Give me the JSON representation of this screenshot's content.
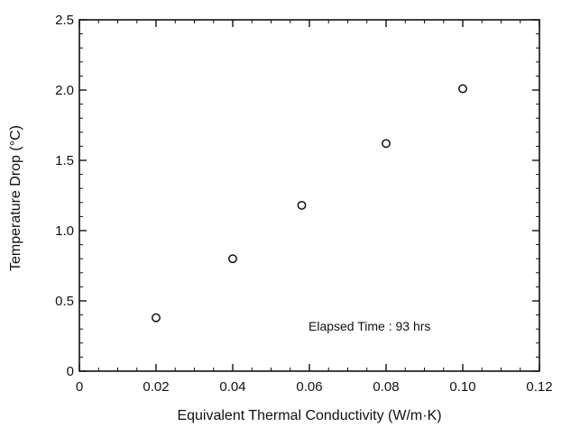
{
  "chart_data": {
    "type": "scatter",
    "title": "",
    "xlabel": "Equivalent Thermal Conductivity (W/m·K)",
    "ylabel": "Temperature Drop (°C)",
    "xlim": [
      0,
      0.12
    ],
    "ylim": [
      0,
      2.5
    ],
    "x_ticks": [
      0,
      0.02,
      0.04,
      0.06,
      0.08,
      0.1,
      0.12
    ],
    "x_tick_labels": [
      "0",
      "0.02",
      "0.04",
      "0.06",
      "0.08",
      "0.10",
      "0.12"
    ],
    "y_ticks": [
      0,
      0.5,
      1.0,
      1.5,
      2.0,
      2.5
    ],
    "y_tick_labels": [
      "0",
      "0.5",
      "1.0",
      "1.5",
      "2.0",
      "2.5"
    ],
    "grid": false,
    "marker": "open-circle",
    "series": [
      {
        "x": [
          0.02,
          0.04,
          0.058,
          0.08,
          0.1
        ],
        "y": [
          0.38,
          0.8,
          1.18,
          1.62,
          2.01
        ]
      }
    ],
    "annotations": [
      "Elapsed  Time : 93 hrs"
    ]
  }
}
